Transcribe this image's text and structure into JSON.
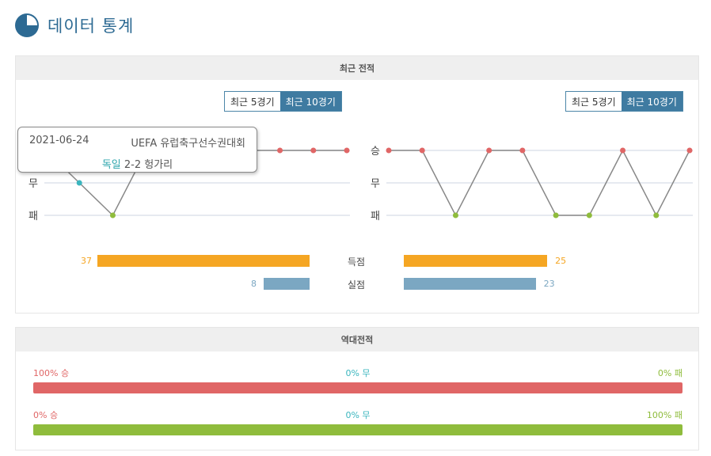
{
  "header": {
    "title": "데이터 통계",
    "icon": "pie-chart-icon"
  },
  "recent": {
    "title": "최근 전적",
    "toggle_left": {
      "opt5": "최근 5경기",
      "opt10": "최근 10경기",
      "active": "opt10"
    },
    "toggle_right": {
      "opt5": "최근 5경기",
      "opt10": "최근 10경기",
      "active": "opt10"
    },
    "axis_labels": {
      "win": "승",
      "draw": "무",
      "loss": "패"
    },
    "tooltip": {
      "date": "2021-06-24",
      "competition": "UEFA 유럽축구선수권대회",
      "home_team": "독일",
      "score": "2-2",
      "away_team": "헝가리"
    },
    "goals_label": "득점",
    "conceded_label": "실점",
    "left_goals": "37",
    "left_conceded": "8",
    "right_goals": "25",
    "right_conceded": "23"
  },
  "chart_data": [
    {
      "type": "line",
      "title": "",
      "categories": [
        "1",
        "2",
        "3",
        "4",
        "5",
        "6",
        "7",
        "8",
        "9",
        "10"
      ],
      "y_levels": [
        "패",
        "무",
        "승"
      ],
      "values": [
        "승",
        "무",
        "패",
        "승",
        "승",
        "승",
        "승",
        "승",
        "승",
        "승"
      ]
    },
    {
      "type": "line",
      "title": "",
      "categories": [
        "1",
        "2",
        "3",
        "4",
        "5",
        "6",
        "7",
        "8",
        "9",
        "10"
      ],
      "y_levels": [
        "패",
        "무",
        "승"
      ],
      "values": [
        "승",
        "승",
        "패",
        "승",
        "승",
        "패",
        "패",
        "승",
        "패",
        "승"
      ]
    },
    {
      "type": "bar",
      "categories": [
        "득점",
        "실점"
      ],
      "series": [
        {
          "values": [
            37,
            8
          ]
        },
        {
          "values": [
            25,
            23
          ]
        }
      ]
    }
  ],
  "h2h": {
    "title": "역대전적",
    "row1": {
      "win": "100% 승",
      "draw": "0% 무",
      "loss": "0% 패",
      "win_pct": 100,
      "draw_pct": 0,
      "loss_pct": 0
    },
    "row2": {
      "win": "0% 승",
      "draw": "0% 무",
      "loss": "100% 패",
      "win_pct": 0,
      "draw_pct": 0,
      "loss_pct": 100
    }
  },
  "colors": {
    "win": "#e06666",
    "draw": "#3ab5be",
    "loss": "#8fbc3c",
    "goals": "#f5a623",
    "conceded": "#7ba7c2",
    "title": "#2d6a93"
  }
}
